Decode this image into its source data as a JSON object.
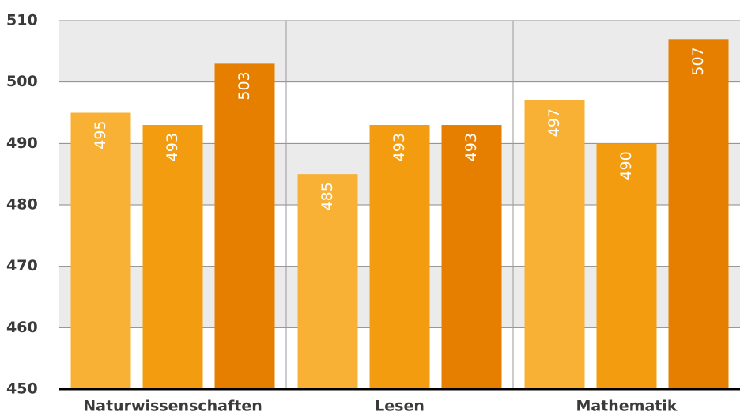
{
  "chart_data": {
    "type": "bar",
    "categories": [
      "Naturwissenschaften",
      "Lesen",
      "Mathematik"
    ],
    "series": [
      {
        "color": "#f8b134",
        "values": [
          495,
          485,
          497
        ]
      },
      {
        "color": "#f39c0f",
        "values": [
          493,
          493,
          490
        ]
      },
      {
        "color": "#e67f00",
        "values": [
          503,
          493,
          507
        ]
      }
    ],
    "ylim": [
      450,
      510
    ],
    "yticks": [
      450,
      460,
      470,
      480,
      490,
      500,
      510
    ],
    "grid": true
  }
}
